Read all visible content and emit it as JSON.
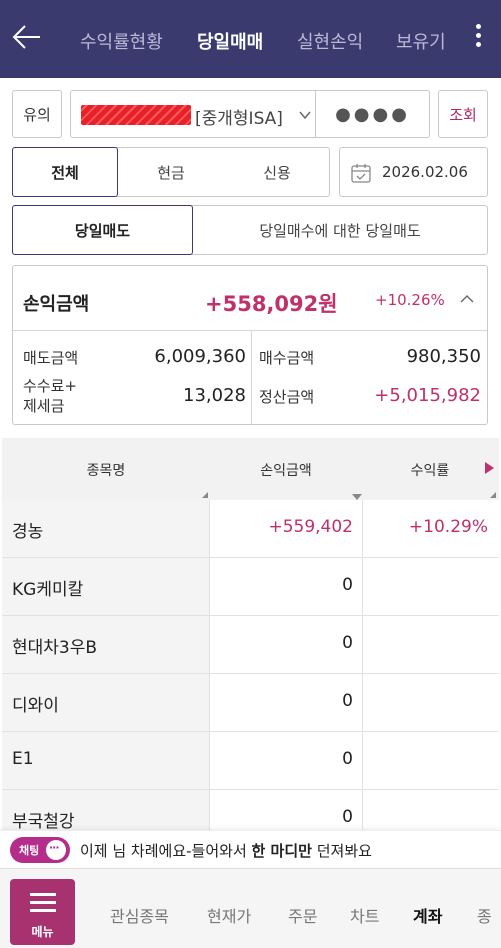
{
  "header": {
    "tabs": [
      {
        "label": "수익률현황",
        "active": false
      },
      {
        "label": "당일매매",
        "active": true
      },
      {
        "label": "실현손익",
        "active": false
      },
      {
        "label": "보유기",
        "active": false
      }
    ]
  },
  "account": {
    "type_label": "유의",
    "account_name": "[중개형ISA]",
    "password_mask": "●●●●",
    "query_label": "조회"
  },
  "filter": {
    "segments": [
      "전체",
      "현금",
      "신용"
    ],
    "selected": "전체",
    "date": "2026.02.06"
  },
  "mode": {
    "options": [
      "당일매도",
      "당일매수에 대한 당일매도"
    ],
    "selected": "당일매도"
  },
  "summary": {
    "label": "손익금액",
    "amount": "+558,092원",
    "rate": "+10.26%",
    "sell_amount_label": "매도금액",
    "sell_amount": "6,009,360",
    "buy_amount_label": "매수금액",
    "buy_amount": "980,350",
    "fee_label_line1": "수수료+",
    "fee_label_line2": "제세금",
    "fee": "13,028",
    "settle_label": "정산금액",
    "settle": "+5,015,982"
  },
  "table": {
    "columns": [
      "종목명",
      "손익금액",
      "수익률"
    ],
    "rows": [
      {
        "name": "경농",
        "pnl": "+559,402",
        "rate": "+10.29%"
      },
      {
        "name": "KG케미칼",
        "pnl": "0",
        "rate": ""
      },
      {
        "name": "현대차3우B",
        "pnl": "0",
        "rate": ""
      },
      {
        "name": "디와이",
        "pnl": "0",
        "rate": ""
      },
      {
        "name": "E1",
        "pnl": "0",
        "rate": ""
      },
      {
        "name": "부국철강",
        "pnl": "0",
        "rate": ""
      }
    ]
  },
  "chat": {
    "pill_label": "채팅",
    "message_pre": "이제 님 차례에요-들어와서 ",
    "message_bold": "한 마디만",
    "message_post": " 던져봐요"
  },
  "bottom_nav": {
    "menu_label": "메뉴",
    "items": [
      "관심종목",
      "현재가",
      "주문",
      "차트",
      "계좌",
      "종"
    ],
    "active": "계좌"
  },
  "colors": {
    "header_bg": "#3a3a6e",
    "accent_pink": "#c0306b",
    "menu_bg": "#a83270",
    "chat_pill": "#b52d8a"
  },
  "icons": {
    "back": "arrow-left-icon",
    "more": "kebab-menu-icon",
    "calendar": "calendar-icon",
    "collapse": "chevron-up-icon",
    "dropdown": "chevron-down-icon",
    "chat": "chat-bubble-icon",
    "menu": "hamburger-icon"
  }
}
